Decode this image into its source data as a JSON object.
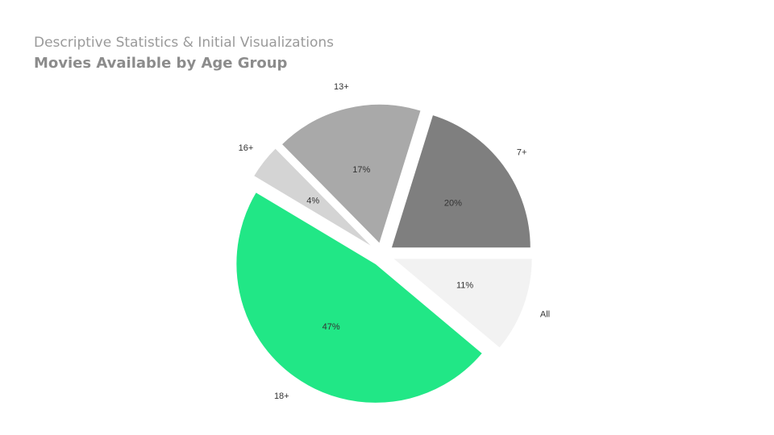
{
  "header": {
    "section_title": "Descriptive Statistics & Initial Visualizations",
    "slide_title": "Movies Available by Age Group"
  },
  "chart_data": {
    "type": "pie",
    "title": "Movies Available by Age Group",
    "categories": [
      "7+",
      "13+",
      "16+",
      "18+",
      "All"
    ],
    "values": [
      20,
      17,
      4,
      47,
      11
    ],
    "value_labels": [
      "20%",
      "17%",
      "4%",
      "47%",
      "11%"
    ],
    "colors": [
      "#7f7f7f",
      "#a9a9a9",
      "#d4d4d4",
      "#21e786",
      "#f2f2f2"
    ],
    "exploded": true,
    "legend": "none"
  }
}
